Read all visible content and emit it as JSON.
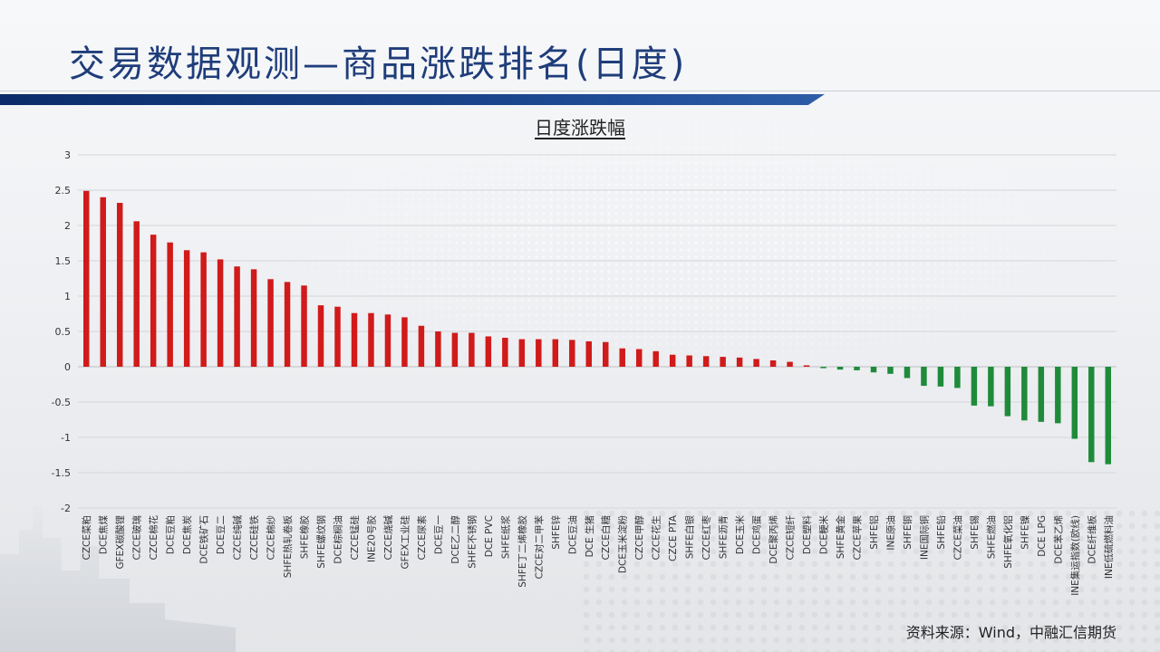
{
  "title": "交易数据观测—商品涨跌排名(日度)",
  "source": "资料来源：Wind，中融汇信期货",
  "colors": {
    "up": "#d11a1a",
    "down": "#1f8b3a",
    "title": "#1f3d7a"
  },
  "chart_data": {
    "type": "bar",
    "title": "日度涨跌幅",
    "xlabel": "",
    "ylabel": "",
    "ylim": [
      -2,
      3
    ],
    "yticks": [
      3,
      2.5,
      2,
      1.5,
      1,
      0.5,
      0,
      -0.5,
      -1,
      -1.5,
      -2
    ],
    "yticklabels": [
      "3",
      "2.5",
      "2",
      "1.5",
      "1",
      "0.5",
      "0",
      "-0.5",
      "-1",
      "-1.5",
      "-2"
    ],
    "grid": true,
    "legend": "none",
    "categories": [
      "CZCE菜粕",
      "DCE焦煤",
      "GFEX碳酸锂",
      "CZCE玻璃",
      "CZCE棉花",
      "DCE豆粕",
      "DCE焦炭",
      "DCE铁矿石",
      "DCE豆二",
      "CZCE纯碱",
      "CZCE硅铁",
      "CZCE棉纱",
      "SHFE热轧卷板",
      "SHFE橡胶",
      "SHFE螺纹钢",
      "DCE棕榈油",
      "CZCE锰硅",
      "INE20号胶",
      "CZCE烧碱",
      "GFEX工业硅",
      "CZCE尿素",
      "DCE豆一",
      "DCE乙二醇",
      "SHFE不锈钢",
      "DCE PVC",
      "SHFE纸浆",
      "SHFE丁二烯橡胶",
      "CZCE对二甲苯",
      "SHFE锌",
      "DCE豆油",
      "DCE 生猪",
      "CZCE白糖",
      "DCE玉米淀粉",
      "CZCE甲醇",
      "CZCE花生",
      "CZCE PTA",
      "SHFE白银",
      "CZCE红枣",
      "SHFE沥青",
      "DCE玉米",
      "DCE鸡蛋",
      "DCE聚丙烯",
      "CZCE短纤",
      "DCE塑料",
      "DCE粳米",
      "SHFE黄金",
      "CZCE苹果",
      "SHFE铝",
      "INE原油",
      "SHFE铜",
      "INE国际铜",
      "SHFE铅",
      "CZCE菜油",
      "SHFE锡",
      "SHFE燃油",
      "SHFE氧化铝",
      "SHFE镍",
      "DCE LPG",
      "DCE苯乙烯",
      "INE集运指数(欧线)",
      "DCE纤维板",
      "INE低硫燃料油"
    ],
    "values": [
      2.49,
      2.4,
      2.32,
      2.06,
      1.87,
      1.76,
      1.65,
      1.62,
      1.52,
      1.42,
      1.38,
      1.24,
      1.2,
      1.15,
      0.87,
      0.85,
      0.76,
      0.76,
      0.74,
      0.7,
      0.58,
      0.5,
      0.48,
      0.48,
      0.43,
      0.41,
      0.39,
      0.39,
      0.39,
      0.38,
      0.36,
      0.35,
      0.26,
      0.25,
      0.22,
      0.17,
      0.16,
      0.15,
      0.14,
      0.13,
      0.11,
      0.09,
      0.07,
      0.02,
      -0.02,
      -0.04,
      -0.05,
      -0.08,
      -0.1,
      -0.16,
      -0.27,
      -0.28,
      -0.3,
      -0.55,
      -0.56,
      -0.7,
      -0.76,
      -0.78,
      -0.8,
      -1.02,
      -1.35,
      -1.38
    ]
  }
}
